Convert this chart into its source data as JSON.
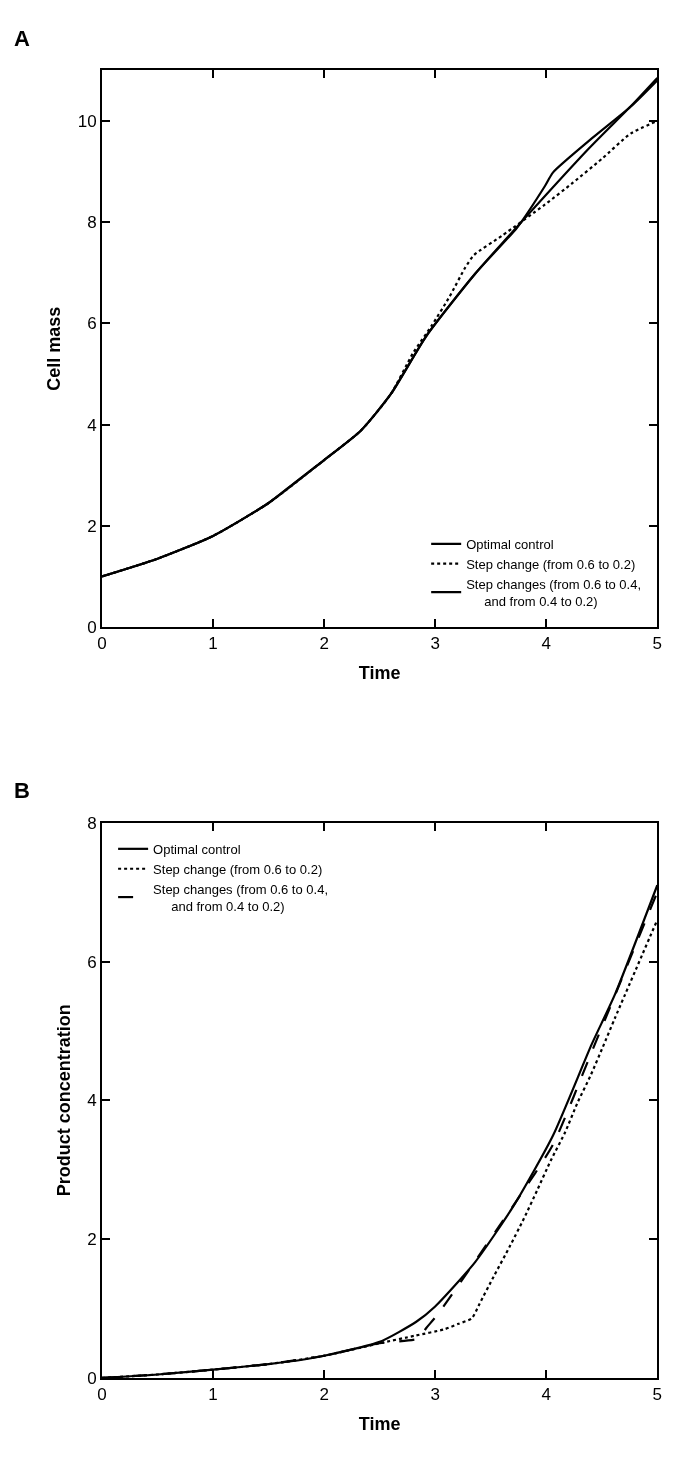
{
  "chart_data": [
    {
      "type": "line",
      "title": "A",
      "xlabel": "Time",
      "ylabel": "Cell mass",
      "xlim": [
        0,
        5
      ],
      "ylim": [
        0,
        11
      ],
      "xticks": [
        0,
        1,
        2,
        3,
        4,
        5
      ],
      "yticks": [
        0,
        2,
        4,
        6,
        8,
        10
      ],
      "legend": "bottom right",
      "series": [
        {
          "name": "Optimal control",
          "color": "#000000",
          "line_style": "solid",
          "x": [
            0,
            0.5,
            1,
            1.5,
            1.74,
            2,
            2.33,
            2.6,
            2.92,
            3.36,
            3.8,
            4.39,
            4.77,
            5
          ],
          "values": [
            1.0,
            1.35,
            1.8,
            2.45,
            2.86,
            3.3,
            3.88,
            4.6,
            5.75,
            6.98,
            8.06,
            9.47,
            10.31,
            10.85
          ]
        },
        {
          "name": "Step change (from 0.6 to 0.2)",
          "color": "#000000",
          "line_style": "dotted",
          "x": [
            0,
            0.5,
            1,
            1.5,
            2,
            2.33,
            2.6,
            2.8,
            2.97,
            3.13,
            3.27,
            3.35,
            3.6,
            3.99,
            4.24,
            4.5,
            4.76,
            5
          ],
          "values": [
            1.0,
            1.35,
            1.8,
            2.45,
            3.3,
            3.88,
            4.6,
            5.41,
            5.96,
            6.53,
            7.1,
            7.35,
            7.73,
            8.35,
            8.78,
            9.25,
            9.75,
            10.0
          ]
        },
        {
          "name": "Step changes (from 0.6 to 0.4,\n     and from 0.4 to 0.2)",
          "color": "#000000",
          "line_style": "solid",
          "x": [
            0,
            0.5,
            1,
            1.5,
            2,
            2.33,
            2.6,
            2.92,
            3.36,
            3.74,
            3.99,
            4.06,
            4.43,
            4.77,
            5
          ],
          "values": [
            1.0,
            1.35,
            1.8,
            2.45,
            3.3,
            3.88,
            4.6,
            5.75,
            6.98,
            7.9,
            8.72,
            8.98,
            9.69,
            10.3,
            10.8
          ]
        }
      ]
    },
    {
      "type": "line",
      "title": "B",
      "xlabel": "Time",
      "ylabel": "Product concentration",
      "xlim": [
        0,
        5
      ],
      "ylim": [
        0,
        8
      ],
      "xticks": [
        0,
        1,
        2,
        3,
        4,
        5
      ],
      "yticks": [
        0,
        2,
        4,
        6,
        8
      ],
      "legend": "top left",
      "series": [
        {
          "name": "Optimal control",
          "color": "#000000",
          "line_style": "solid",
          "x": [
            0,
            0.5,
            1,
            1.5,
            1.83,
            2,
            2.5,
            2.83,
            3.0,
            3.36,
            3.71,
            4.06,
            4.41,
            4.62,
            5
          ],
          "values": [
            0,
            0.05,
            0.12,
            0.2,
            0.27,
            0.32,
            0.52,
            0.81,
            1.03,
            1.67,
            2.49,
            3.49,
            4.81,
            5.53,
            7.1
          ]
        },
        {
          "name": "Step change (from 0.6 to 0.2)",
          "color": "#000000",
          "line_style": "dotted",
          "x": [
            0,
            0.5,
            1,
            1.5,
            2,
            2.5,
            2.82,
            3.08,
            3.21,
            3.33,
            3.4,
            3.53,
            3.67,
            3.8,
            3.92,
            4.04,
            4.17,
            4.28,
            4.4,
            4.51,
            4.62,
            5
          ],
          "values": [
            0,
            0.05,
            0.12,
            0.2,
            0.32,
            0.5,
            0.61,
            0.7,
            0.78,
            0.86,
            1.07,
            1.47,
            1.89,
            2.3,
            2.71,
            3.13,
            3.54,
            3.96,
            4.36,
            4.77,
            5.19,
            6.6
          ]
        },
        {
          "name": "Step changes (from 0.6 to 0.4,\n     and from 0.4 to 0.2)",
          "color": "#000000",
          "line_style": "dashed",
          "x": [
            0,
            0.5,
            1,
            1.5,
            2,
            2.5,
            2.85,
            2.92,
            3.02,
            3.74,
            4.06,
            4.41,
            5
          ],
          "values": [
            0,
            0.05,
            0.12,
            0.2,
            0.32,
            0.5,
            0.57,
            0.72,
            0.91,
            2.57,
            3.36,
            4.7,
            7.0
          ]
        }
      ]
    }
  ]
}
